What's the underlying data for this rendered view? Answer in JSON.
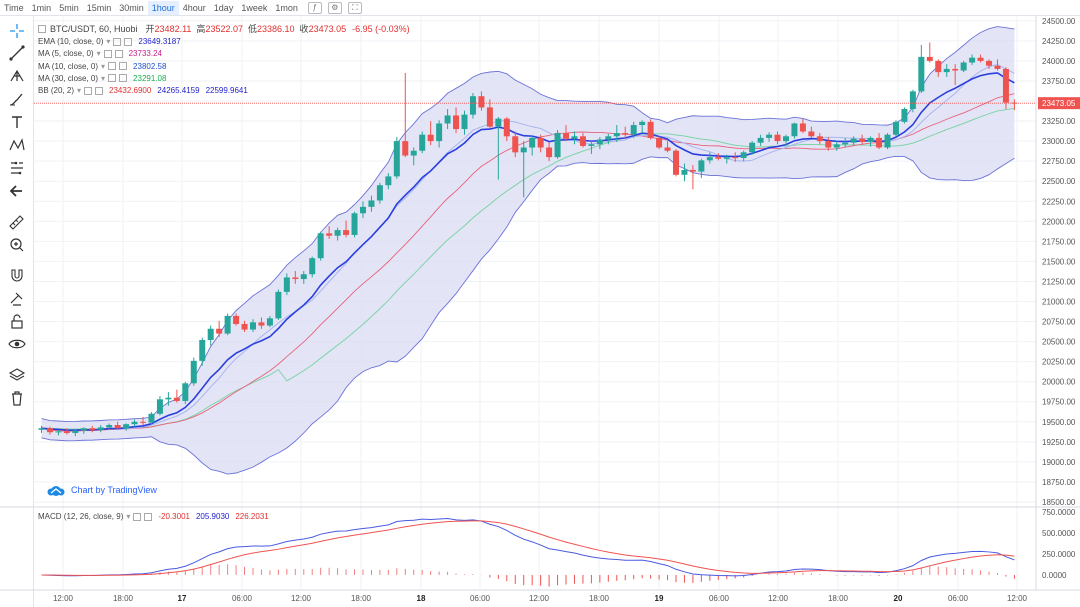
{
  "timeframes": [
    {
      "label": "Time",
      "active": false
    },
    {
      "label": "1min",
      "active": false
    },
    {
      "label": "5min",
      "active": false
    },
    {
      "label": "15min",
      "active": false
    },
    {
      "label": "30min",
      "active": false
    },
    {
      "label": "1hour",
      "active": true
    },
    {
      "label": "4hour",
      "active": false
    },
    {
      "label": "1day",
      "active": false
    },
    {
      "label": "1week",
      "active": false
    },
    {
      "label": "1mon",
      "active": false
    }
  ],
  "toolbar": {
    "icons": [
      "crosshair-icon",
      "trend-line-icon",
      "pitchfork-icon",
      "brush-icon",
      "text-icon",
      "pattern-icon",
      "prediction-icon",
      "back-arrow-icon",
      "ruler-icon",
      "zoom-in-icon",
      "magnet-icon",
      "lock-drawings-icon",
      "unlock-icon",
      "eye-icon",
      "layers-icon",
      "trash-icon"
    ]
  },
  "header": {
    "symbol": "BTC/USDT, 60, Huobi",
    "open_label": "开",
    "open": "23482.11",
    "high_label": "高",
    "high": "23522.07",
    "low_label": "低",
    "low": "23386.10",
    "close_label": "收",
    "close": "23473.05",
    "change": "-6.95 (-0.03%)"
  },
  "indicators": [
    {
      "label": "EMA (10, close, 0)",
      "values": [
        "23649.3187"
      ],
      "colors": [
        "#1e1ec8"
      ]
    },
    {
      "label": "MA (5, close, 0)",
      "values": [
        "23733.24"
      ],
      "colors": [
        "#c81e8c"
      ]
    },
    {
      "label": "MA (10, close, 0)",
      "values": [
        "23802.58"
      ],
      "colors": [
        "#2050d0"
      ]
    },
    {
      "label": "MA (30, close, 0)",
      "values": [
        "23291.08"
      ],
      "colors": [
        "#18b050"
      ]
    },
    {
      "label": "BB (20, 2)",
      "values": [
        "23432.6900",
        "24265.4159",
        "22599.9641"
      ],
      "colors": [
        "#e03030",
        "#1e1ec8",
        "#1e1ec8"
      ]
    }
  ],
  "macd": {
    "label": "MACD (12, 26, close, 9)",
    "values": [
      "-20.3001",
      "205.9030",
      "226.2031"
    ],
    "colors": [
      "#e03030",
      "#1e1ec8",
      "#e03030"
    ]
  },
  "attribution": "Chart by TradingView",
  "colors": {
    "up": "#26a69a",
    "down": "#ef5350",
    "bb_fill": "#d9dcf3",
    "bb_line": "#6b72d8",
    "ema": "#2b3fe0",
    "ma_red": "#e8607a",
    "ma_green": "#7fd3a8",
    "price_tag": "#ef5350"
  },
  "chart_data": [
    {
      "type": "candlestick",
      "title": "BTC/USDT, 60, Huobi",
      "x_tick_labels": [
        "12:00",
        "18:00",
        "17",
        "06:00",
        "12:00",
        "18:00",
        "18",
        "06:00",
        "12:00",
        "18:00",
        "19",
        "06:00",
        "12:00",
        "18:00",
        "20",
        "06:00",
        "12:00"
      ],
      "y_tick_labels": [
        "24500.00",
        "24250.00",
        "24000.00",
        "23750.00",
        "23500.00",
        "23250.00",
        "23000.00",
        "22750.00",
        "22500.00",
        "22250.00",
        "22000.00",
        "21750.00",
        "21500.00",
        "21250.00",
        "21000.00",
        "20750.00",
        "20500.00",
        "20250.00",
        "20000.00",
        "19750.00",
        "19500.00",
        "19250.00",
        "19000.00",
        "18750.00",
        "18500.00"
      ],
      "ylim": [
        18450,
        24560
      ],
      "last_price": "23473.05",
      "candles": [
        [
          19400,
          19450,
          19360,
          19420
        ],
        [
          19420,
          19440,
          19340,
          19370
        ],
        [
          19370,
          19400,
          19330,
          19380
        ],
        [
          19380,
          19420,
          19340,
          19360
        ],
        [
          19360,
          19400,
          19320,
          19390
        ],
        [
          19390,
          19430,
          19350,
          19420
        ],
        [
          19420,
          19450,
          19370,
          19400
        ],
        [
          19400,
          19460,
          19370,
          19430
        ],
        [
          19430,
          19480,
          19400,
          19460
        ],
        [
          19460,
          19500,
          19400,
          19420
        ],
        [
          19420,
          19480,
          19390,
          19470
        ],
        [
          19470,
          19530,
          19440,
          19500
        ],
        [
          19500,
          19560,
          19460,
          19490
        ],
        [
          19490,
          19620,
          19470,
          19600
        ],
        [
          19600,
          19820,
          19580,
          19780
        ],
        [
          19780,
          19870,
          19700,
          19800
        ],
        [
          19800,
          19900,
          19740,
          19760
        ],
        [
          19760,
          20000,
          19720,
          19980
        ],
        [
          19980,
          20300,
          19950,
          20260
        ],
        [
          20260,
          20550,
          20200,
          20520
        ],
        [
          20520,
          20700,
          20450,
          20660
        ],
        [
          20660,
          20760,
          20560,
          20600
        ],
        [
          20600,
          20850,
          20580,
          20820
        ],
        [
          20820,
          20850,
          20700,
          20720
        ],
        [
          20720,
          20760,
          20620,
          20650
        ],
        [
          20650,
          20780,
          20620,
          20740
        ],
        [
          20740,
          20800,
          20660,
          20700
        ],
        [
          20700,
          20820,
          20680,
          20790
        ],
        [
          20790,
          21150,
          20770,
          21120
        ],
        [
          21120,
          21350,
          21080,
          21300
        ],
        [
          21300,
          21380,
          21220,
          21280
        ],
        [
          21280,
          21380,
          21220,
          21340
        ],
        [
          21340,
          21560,
          21300,
          21540
        ],
        [
          21540,
          21870,
          21510,
          21850
        ],
        [
          21850,
          21940,
          21780,
          21820
        ],
        [
          21820,
          21920,
          21760,
          21890
        ],
        [
          21890,
          22010,
          21800,
          21830
        ],
        [
          21830,
          22120,
          21800,
          22100
        ],
        [
          22100,
          22250,
          22040,
          22180
        ],
        [
          22180,
          22320,
          22120,
          22260
        ],
        [
          22260,
          22480,
          22220,
          22450
        ],
        [
          22450,
          22600,
          22400,
          22560
        ],
        [
          22560,
          23050,
          22530,
          23000
        ],
        [
          23000,
          23850,
          22800,
          22820
        ],
        [
          22820,
          22920,
          22700,
          22880
        ],
        [
          22880,
          23120,
          22850,
          23080
        ],
        [
          23080,
          23250,
          22950,
          23000
        ],
        [
          23000,
          23260,
          22920,
          23220
        ],
        [
          23220,
          23400,
          23150,
          23320
        ],
        [
          23320,
          23420,
          23100,
          23150
        ],
        [
          23150,
          23380,
          23080,
          23330
        ],
        [
          23330,
          23600,
          23280,
          23560
        ],
        [
          23560,
          23620,
          23380,
          23420
        ],
        [
          23420,
          23520,
          23160,
          23180
        ],
        [
          23180,
          23300,
          22520,
          23280
        ],
        [
          23280,
          23300,
          23000,
          23060
        ],
        [
          23060,
          23120,
          22800,
          22860
        ],
        [
          22860,
          23000,
          22300,
          22920
        ],
        [
          22920,
          23060,
          22820,
          23040
        ],
        [
          23040,
          23080,
          22860,
          22920
        ],
        [
          22920,
          22990,
          22750,
          22800
        ],
        [
          22800,
          23140,
          22780,
          23100
        ],
        [
          23100,
          23200,
          23000,
          23030
        ],
        [
          23030,
          23120,
          22960,
          23060
        ],
        [
          23060,
          23100,
          22920,
          22940
        ],
        [
          22940,
          23000,
          22840,
          22960
        ],
        [
          22960,
          23050,
          22900,
          23020
        ],
        [
          23020,
          23090,
          22960,
          23060
        ],
        [
          23060,
          23200,
          22990,
          23100
        ],
        [
          23100,
          23180,
          23030,
          23080
        ],
        [
          23080,
          23240,
          23040,
          23200
        ],
        [
          23200,
          23260,
          23100,
          23240
        ],
        [
          23240,
          23270,
          23020,
          23040
        ],
        [
          23040,
          23060,
          22900,
          22920
        ],
        [
          22920,
          23000,
          22860,
          22880
        ],
        [
          22880,
          22900,
          22560,
          22580
        ],
        [
          22580,
          22720,
          22500,
          22640
        ],
        [
          22640,
          22700,
          22400,
          22620
        ],
        [
          22620,
          22780,
          22540,
          22760
        ],
        [
          22760,
          22860,
          22720,
          22800
        ],
        [
          22800,
          22850,
          22760,
          22780
        ],
        [
          22780,
          22830,
          22720,
          22800
        ],
        [
          22800,
          22860,
          22740,
          22790
        ],
        [
          22790,
          22880,
          22750,
          22860
        ],
        [
          22860,
          23000,
          22830,
          22980
        ],
        [
          22980,
          23080,
          22940,
          23040
        ],
        [
          23040,
          23110,
          22990,
          23080
        ],
        [
          23080,
          23120,
          22960,
          23000
        ],
        [
          23000,
          23080,
          22940,
          23060
        ],
        [
          23060,
          23230,
          23030,
          23220
        ],
        [
          23220,
          23280,
          23100,
          23120
        ],
        [
          23120,
          23180,
          23040,
          23060
        ],
        [
          23060,
          23100,
          22960,
          23000
        ],
        [
          23000,
          23050,
          22880,
          22920
        ],
        [
          22920,
          23000,
          22880,
          22960
        ],
        [
          22960,
          23040,
          22920,
          22980
        ],
        [
          22980,
          23060,
          22950,
          23030
        ],
        [
          23030,
          23080,
          22960,
          22990
        ],
        [
          22990,
          23060,
          22930,
          23040
        ],
        [
          23040,
          23100,
          22900,
          22920
        ],
        [
          22920,
          23100,
          22900,
          23080
        ],
        [
          23080,
          23260,
          23060,
          23240
        ],
        [
          23240,
          23420,
          23220,
          23400
        ],
        [
          23400,
          23640,
          23360,
          23620
        ],
        [
          23620,
          24200,
          23600,
          24050
        ],
        [
          24050,
          24230,
          23980,
          24000
        ],
        [
          24000,
          24020,
          23800,
          23860
        ],
        [
          23860,
          23960,
          23800,
          23900
        ],
        [
          23900,
          23960,
          23700,
          23880
        ],
        [
          23880,
          24000,
          23860,
          23980
        ],
        [
          23980,
          24080,
          23950,
          24040
        ],
        [
          24040,
          24080,
          23980,
          24000
        ],
        [
          24000,
          24020,
          23900,
          23940
        ],
        [
          23940,
          24020,
          23880,
          23900
        ],
        [
          23900,
          23920,
          23400,
          23480
        ],
        [
          23480,
          23522,
          23386,
          23473
        ]
      ]
    },
    {
      "type": "macd",
      "title": "MACD (12, 26, close, 9)",
      "y_tick_labels": [
        "750.0000",
        "500.0000",
        "250.0000",
        "0.0000"
      ],
      "ylim": [
        -180,
        800
      ],
      "current": {
        "histogram": -20.3001,
        "macd": 205.903,
        "signal": 226.2031
      }
    }
  ]
}
